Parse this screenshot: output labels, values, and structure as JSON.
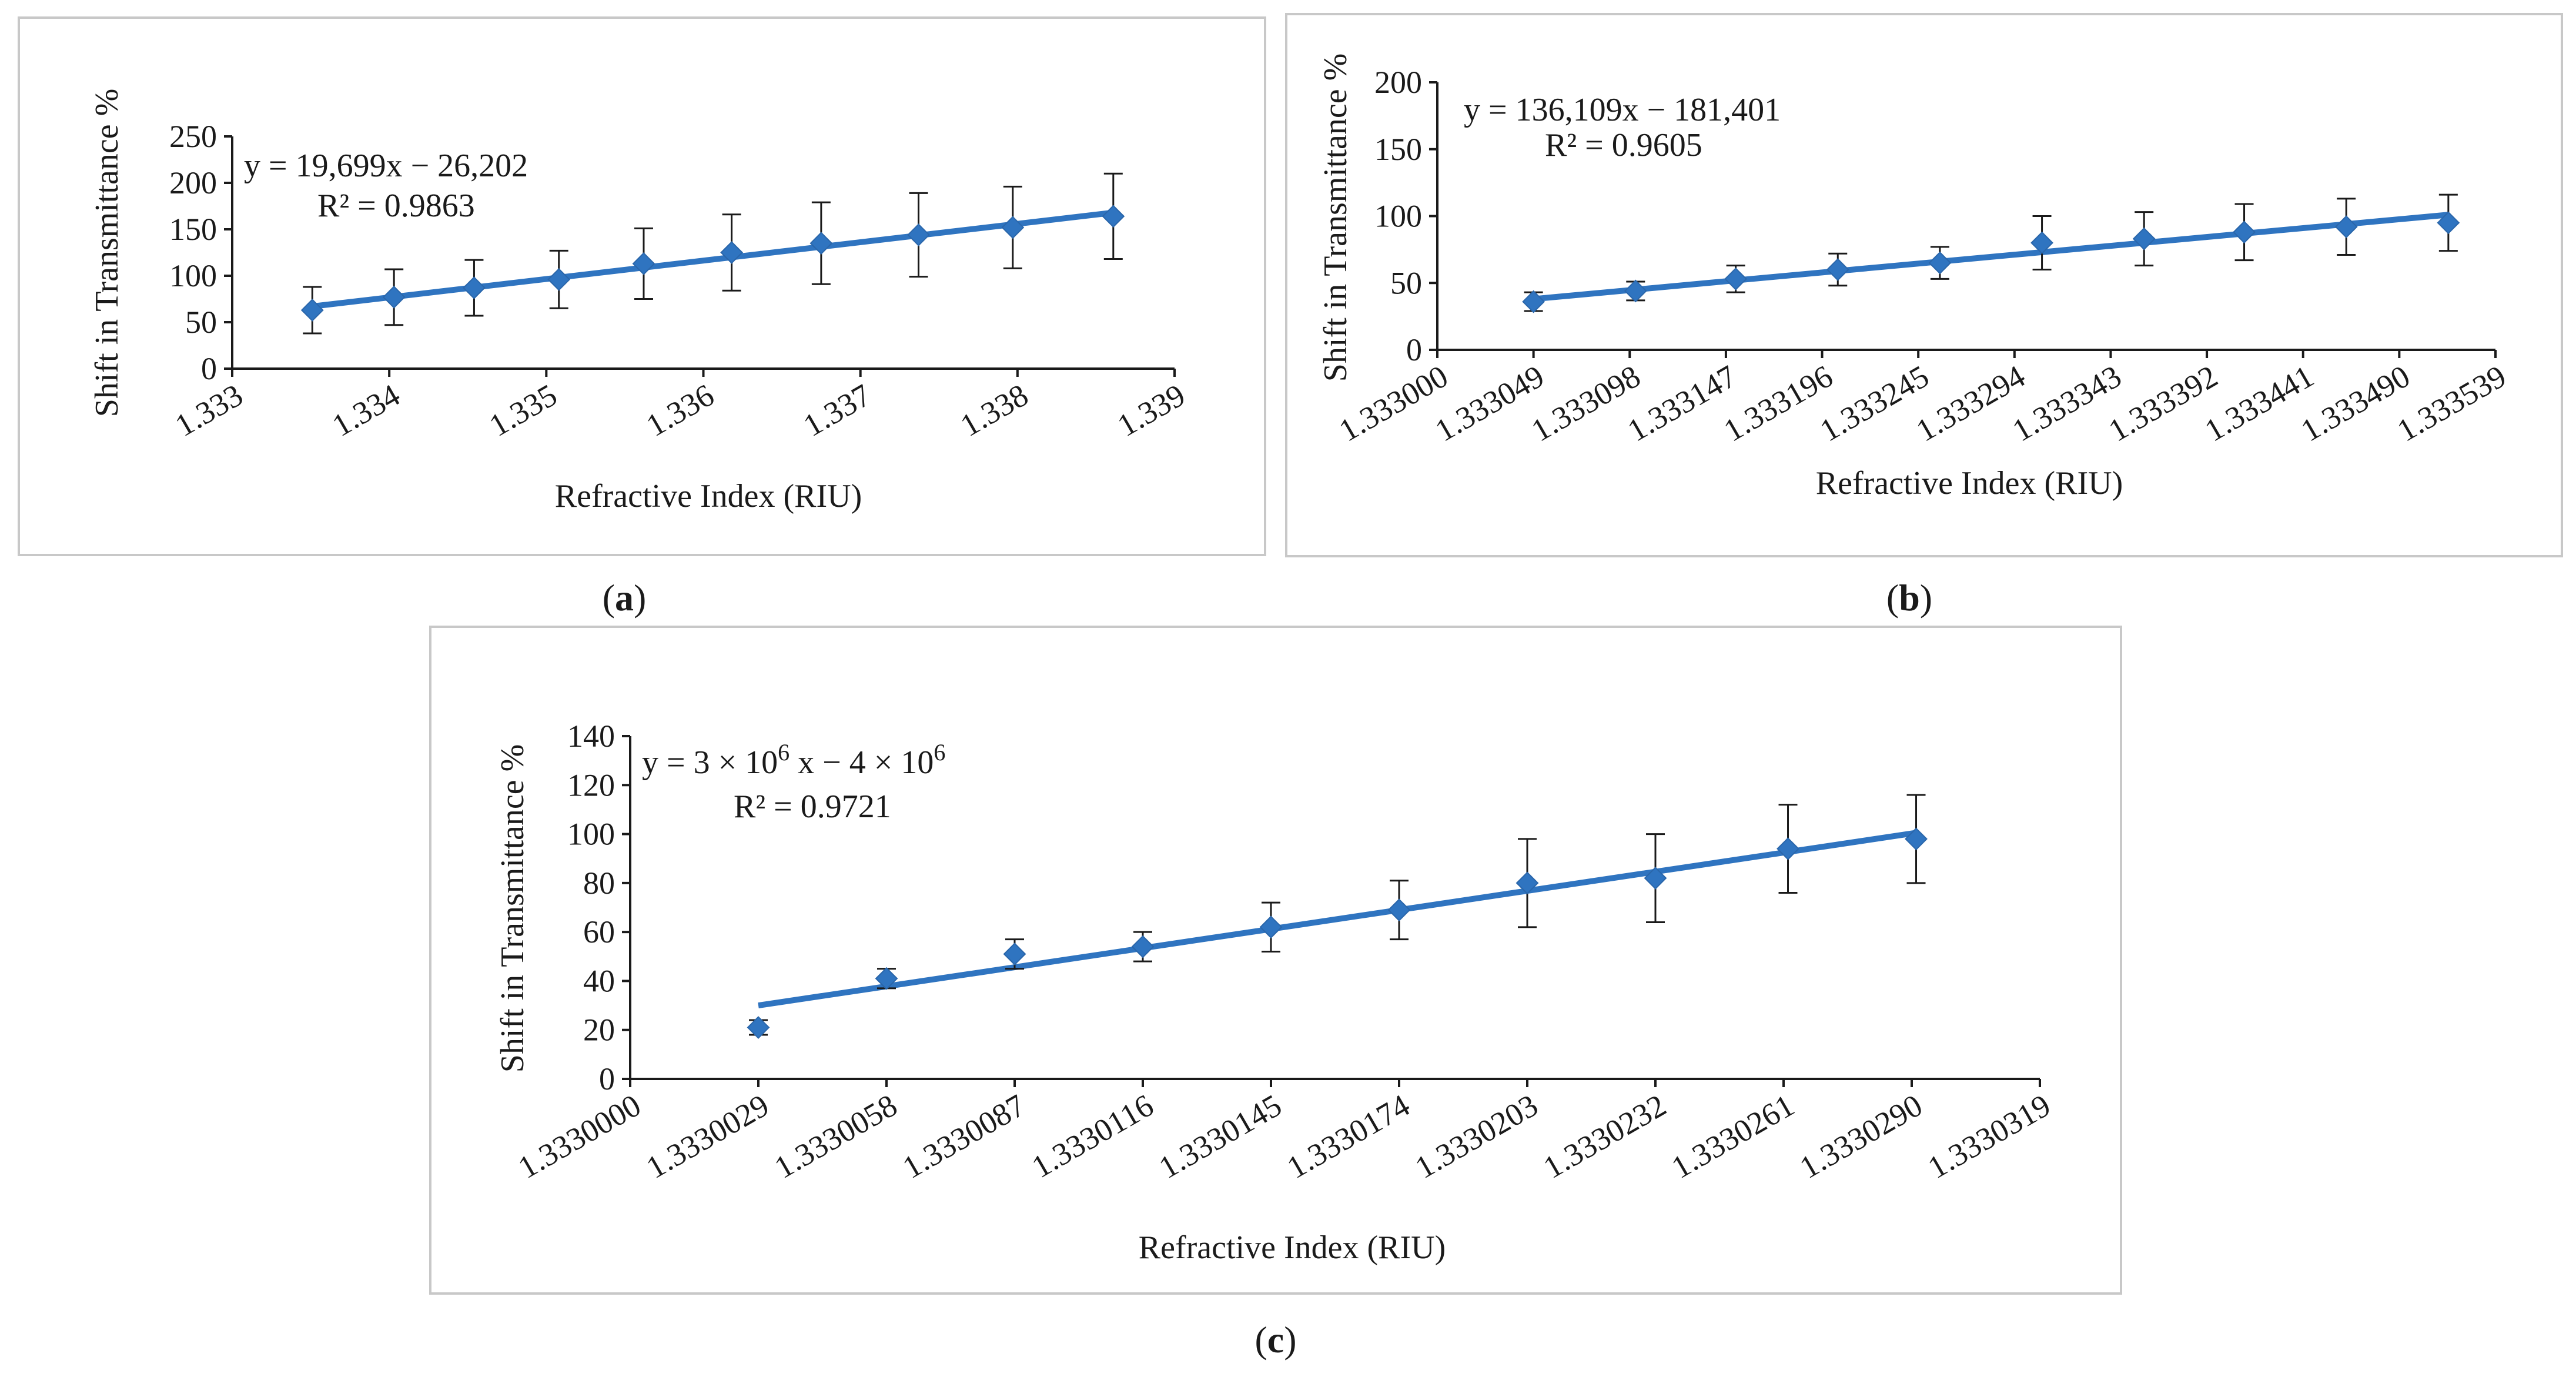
{
  "chart_data": [
    {
      "id": "a",
      "type": "scatter",
      "panel_label": "a",
      "xlabel": "Refractive Index (RIU)",
      "ylabel": "Shift in Transmittance %",
      "x_ticks": [
        "1.333",
        "1.334",
        "1.335",
        "1.336",
        "1.337",
        "1.338",
        "1.339"
      ],
      "y_ticks": [
        "0",
        "50",
        "100",
        "150",
        "200",
        "250"
      ],
      "xlim": [
        1.333,
        1.339
      ],
      "ylim": [
        0,
        250
      ],
      "x_tick_rotation": -30,
      "equation": "y = 19,699x − 26,202",
      "r2": "R² = 0.9863",
      "trendline": {
        "x_start": 1.33351,
        "y_start": 67,
        "x_end": 1.33861,
        "y_end": 168
      },
      "points": [
        {
          "x": 1.33351,
          "y": 63,
          "err": 25
        },
        {
          "x": 1.33403,
          "y": 77,
          "err": 30
        },
        {
          "x": 1.33454,
          "y": 87,
          "err": 30
        },
        {
          "x": 1.33508,
          "y": 96,
          "err": 31
        },
        {
          "x": 1.33562,
          "y": 113,
          "err": 38
        },
        {
          "x": 1.33618,
          "y": 125,
          "err": 41
        },
        {
          "x": 1.33675,
          "y": 135,
          "err": 44
        },
        {
          "x": 1.33737,
          "y": 144,
          "err": 45
        },
        {
          "x": 1.33797,
          "y": 152,
          "err": 44
        },
        {
          "x": 1.33861,
          "y": 164,
          "err": 46
        }
      ]
    },
    {
      "id": "b",
      "type": "scatter",
      "panel_label": "b",
      "xlabel": "Refractive Index (RIU)",
      "ylabel": "Shift in Transmittance %",
      "x_ticks": [
        "1.333000",
        "1.333049",
        "1.333098",
        "1.333147",
        "1.333196",
        "1.333245",
        "1.333294",
        "1.333343",
        "1.333392",
        "1.333441",
        "1.333490",
        "1.333539"
      ],
      "y_ticks": [
        "0",
        "50",
        "100",
        "150",
        "200"
      ],
      "xlim": [
        1.333,
        1.333539
      ],
      "ylim": [
        0,
        200
      ],
      "x_tick_rotation": -30,
      "equation": "y = 136,109x − 181,401",
      "r2": "R² = 0.9605",
      "trendline": {
        "x_start": 1.333049,
        "y_start": 38,
        "x_end": 1.333515,
        "y_end": 101
      },
      "points": [
        {
          "x": 1.333049,
          "y": 36,
          "err": 7
        },
        {
          "x": 1.333101,
          "y": 44,
          "err": 7
        },
        {
          "x": 1.333152,
          "y": 53,
          "err": 10
        },
        {
          "x": 1.333204,
          "y": 60,
          "err": 12
        },
        {
          "x": 1.333256,
          "y": 65,
          "err": 12
        },
        {
          "x": 1.333308,
          "y": 80,
          "err": 20
        },
        {
          "x": 1.33336,
          "y": 83,
          "err": 20
        },
        {
          "x": 1.333411,
          "y": 88,
          "err": 21
        },
        {
          "x": 1.333463,
          "y": 92,
          "err": 21
        },
        {
          "x": 1.333515,
          "y": 95,
          "err": 21
        }
      ]
    },
    {
      "id": "c",
      "type": "scatter",
      "panel_label": "c",
      "xlabel": "Refractive Index (RIU)",
      "ylabel": "Shift in Transmittance %",
      "x_ticks": [
        "1.3330000",
        "1.3330029",
        "1.3330058",
        "1.3330087",
        "1.3330116",
        "1.3330145",
        "1.3330174",
        "1.3330203",
        "1.3330232",
        "1.3330261",
        "1.3330290",
        "1.3330319"
      ],
      "y_ticks": [
        "0",
        "20",
        "40",
        "60",
        "80",
        "100",
        "120",
        "140"
      ],
      "xlim": [
        1.333,
        1.3330319
      ],
      "ylim": [
        0,
        140
      ],
      "x_tick_rotation": -30,
      "equation_parts": [
        "y = 3 × 10",
        "6",
        " x − 4 × 10",
        "6"
      ],
      "r2": "R² = 0.9721",
      "trendline": {
        "x_start": 1.3330029,
        "y_start": 30,
        "x_end": 1.3330291,
        "y_end": 100.5
      },
      "points": [
        {
          "x": 1.3330029,
          "y": 21,
          "err": 3
        },
        {
          "x": 1.3330058,
          "y": 41,
          "err": 4
        },
        {
          "x": 1.3330087,
          "y": 51,
          "err": 6
        },
        {
          "x": 1.3330116,
          "y": 54,
          "err": 6
        },
        {
          "x": 1.3330145,
          "y": 62,
          "err": 10
        },
        {
          "x": 1.3330174,
          "y": 69,
          "err": 12
        },
        {
          "x": 1.3330203,
          "y": 80,
          "err": 18
        },
        {
          "x": 1.3330232,
          "y": 82,
          "err": 18
        },
        {
          "x": 1.3330262,
          "y": 94,
          "err": 18
        },
        {
          "x": 1.3330291,
          "y": 98,
          "err": 18
        }
      ]
    }
  ],
  "colors": {
    "series": "#2f74c0",
    "frame": "#c8c8c8",
    "axis": "#1a1a1a"
  }
}
